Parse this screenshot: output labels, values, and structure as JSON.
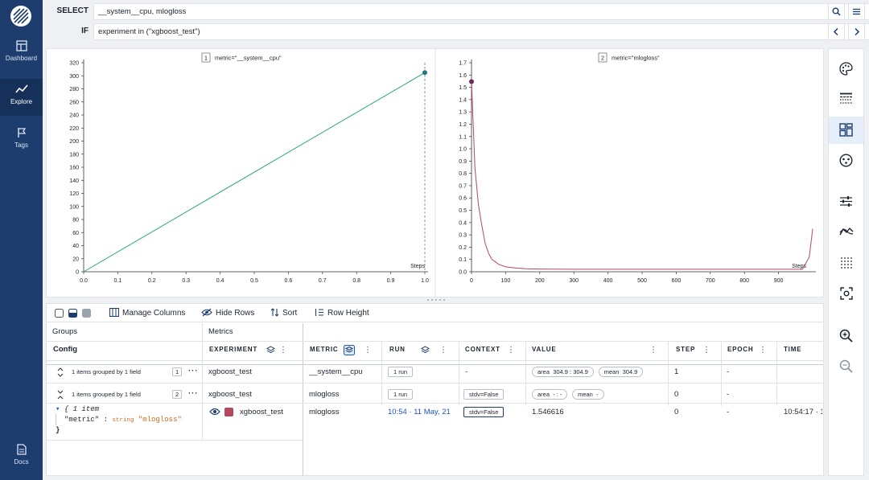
{
  "nav": {
    "items": [
      {
        "label": "Dashboard",
        "icon": "dashboard-icon"
      },
      {
        "label": "Explore",
        "icon": "explore-icon"
      },
      {
        "label": "Tags",
        "icon": "tags-icon"
      },
      {
        "label": "Docs",
        "icon": "docs-icon"
      }
    ],
    "active": "Explore"
  },
  "query": {
    "select_label": "SELECT",
    "select_value": "__system__cpu, mlogloss",
    "if_label": "IF",
    "if_value": "experiment in (\"xgboost_test\")"
  },
  "colors": {
    "nav_bg": "#1c3d6e",
    "cpu_line": "#2ba676",
    "mlogloss_line": "#b5485f",
    "accent": "#1c56c4"
  },
  "chart_data": [
    {
      "type": "line",
      "index": "1",
      "title": "metric=\"__system__cpu\"",
      "xlabel": "Steps",
      "ylabel": "",
      "xlim": [
        0,
        1.0
      ],
      "ylim": [
        0,
        320
      ],
      "x_ticks": [
        "0.0",
        "0.1",
        "0.2",
        "0.3",
        "0.4",
        "0.5",
        "0.6",
        "0.7",
        "0.8",
        "0.9",
        "1.0"
      ],
      "y_ticks": [
        "0",
        "20",
        "40",
        "60",
        "80",
        "100",
        "120",
        "140",
        "160",
        "180",
        "200",
        "220",
        "240",
        "260",
        "280",
        "300",
        "320"
      ],
      "series": [
        {
          "x": [
            0,
            1.0
          ],
          "y": [
            0,
            304.9
          ]
        }
      ],
      "cursor_x": 1.0
    },
    {
      "type": "line",
      "index": "2",
      "title": "metric=\"mlogloss\"",
      "xlabel": "Steps",
      "ylabel": "",
      "xlim": [
        0,
        1000
      ],
      "ylim": [
        0,
        1.7
      ],
      "x_ticks": [
        "0",
        "100",
        "200",
        "300",
        "400",
        "500",
        "600",
        "700",
        "800",
        "900"
      ],
      "y_ticks": [
        "0.0",
        "0.1",
        "0.2",
        "0.3",
        "0.4",
        "0.5",
        "0.6",
        "0.7",
        "0.8",
        "0.9",
        "1.0",
        "1.1",
        "1.2",
        "1.3",
        "1.4",
        "1.5",
        "1.6",
        "1.7"
      ],
      "series": [
        {
          "x": [
            0,
            5,
            10,
            20,
            30,
            40,
            50,
            60,
            80,
            100,
            130,
            160,
            200,
            300,
            400,
            500,
            600,
            700,
            800,
            900,
            970,
            990,
            1000
          ],
          "y": [
            1.55,
            1.2,
            0.85,
            0.55,
            0.38,
            0.23,
            0.15,
            0.1,
            0.06,
            0.04,
            0.03,
            0.025,
            0.022,
            0.02,
            0.02,
            0.02,
            0.02,
            0.02,
            0.02,
            0.02,
            0.02,
            0.12,
            0.35
          ]
        }
      ],
      "marker": {
        "x": 0,
        "y": 1.546616
      }
    }
  ],
  "toolbar": {
    "manage_columns": "Manage Columns",
    "hide_rows": "Hide Rows",
    "sort": "Sort",
    "row_height": "Row Height"
  },
  "table": {
    "groups_header": "Groups",
    "metrics_header": "Metrics",
    "config_header": "Config",
    "columns": {
      "experiment": "EXPERIMENT",
      "metric": "METRIC",
      "run": "RUN",
      "context": "CONTEXT",
      "value": "VALUE",
      "step": "STEP",
      "epoch": "EPOCH",
      "time": "TIME"
    },
    "group_rows": [
      {
        "group_text": "1 items grouped by 1 field",
        "group_index": "1",
        "experiment": "xgboost_test",
        "metric": "__system__cpu",
        "run": "1 run",
        "context": "-",
        "value_area_label": "area",
        "value_area": "304.9 : 304.9",
        "value_mean_label": "mean",
        "value_mean": "304.9",
        "step": "1",
        "epoch": "-"
      },
      {
        "group_text": "1 items grouped by 1 field",
        "group_index": "2",
        "experiment": "xgboost_test",
        "metric": "mlogloss",
        "run": "1 run",
        "context": "stdv=False",
        "value_area_label": "area",
        "value_area": "- : -",
        "value_mean_label": "mean",
        "value_mean": "-",
        "step": "0",
        "epoch": "-"
      }
    ],
    "item_row": {
      "config_line1": "{ 1 item",
      "config_key": "\"metric\"",
      "config_colon": ":",
      "config_type": "string",
      "config_value": "\"mlogloss\"",
      "config_close": "}",
      "experiment": "xgboost_test",
      "metric": "mlogloss",
      "run": "10:54 · 11 May, 21",
      "context": "stdv=False",
      "value": "1.546616",
      "step": "0",
      "epoch": "-",
      "time": "10:54:17 · 1"
    }
  },
  "rightbar": {
    "icons": [
      "palette-icon",
      "table-rows-icon",
      "grid-layout-icon",
      "scatter-circle-icon",
      "sliders-icon",
      "smoothing-icon",
      "density-icon",
      "focus-icon",
      "zoom-in-icon",
      "zoom-out-icon"
    ]
  }
}
